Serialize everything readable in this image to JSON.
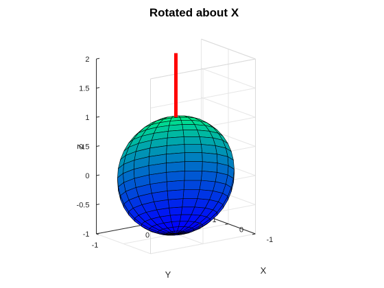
{
  "chart_data": {
    "type": "surface3d",
    "title": "Rotated about X",
    "xlabel": "X",
    "ylabel": "Y",
    "zlabel": "Z",
    "xlim": [
      -1,
      1
    ],
    "ylim": [
      -1,
      1
    ],
    "zlim": [
      -1,
      2
    ],
    "xticks": [
      "-1",
      "0",
      "1"
    ],
    "yticks": [
      "-1",
      "0",
      "1"
    ],
    "zticks": [
      "-1",
      "-0.5",
      "0",
      "0.5",
      "1",
      "1.5",
      "2"
    ],
    "grid": true,
    "colormap": "winter",
    "surface": {
      "shape": "unit sphere",
      "center": [
        0,
        0,
        0
      ],
      "radius": 1,
      "mesh": [
        20,
        20
      ]
    },
    "line": {
      "color": "#ff0000",
      "from": [
        0,
        0,
        1
      ],
      "to": [
        0,
        0,
        2.1
      ]
    }
  }
}
